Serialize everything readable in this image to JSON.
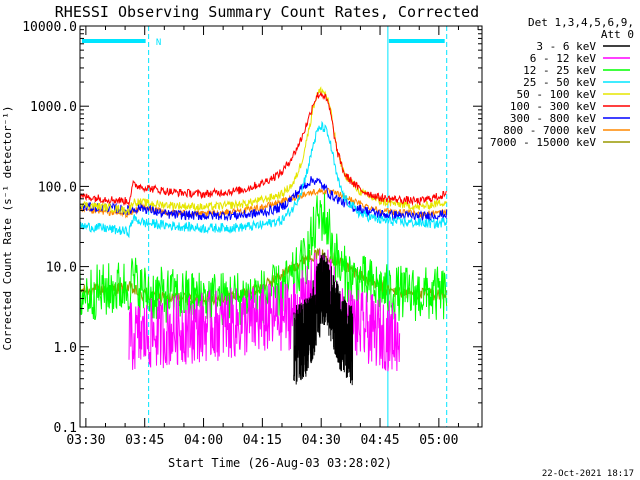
{
  "chart_data": {
    "type": "line",
    "title": "RHESSI Observing Summary Count Rates, Corrected",
    "xlabel": "Start Time (26-Aug-03 03:28:02)",
    "ylabel": "Corrected Count Rate (s⁻¹ detector⁻¹)",
    "yscale": "log",
    "ylim": [
      0.1,
      10000
    ],
    "xlim": [
      0,
      100
    ],
    "x_tick_labels": [
      "03:30",
      "03:45",
      "04:00",
      "04:15",
      "04:30",
      "04:45",
      "05:00"
    ],
    "x_tick_positions": [
      0,
      15,
      30,
      45,
      60,
      75,
      90
    ],
    "y_tick_labels": [
      "0.1",
      "1.0",
      "10.0",
      "100.0",
      "1000.0",
      "10000.0"
    ],
    "y_tick_values": [
      0.1,
      1,
      10,
      100,
      1000,
      10000
    ],
    "legend_header": [
      "Det 1,3,4,5,6,9,",
      "Att 0"
    ],
    "footer_date": "22-Oct-2021 18:17",
    "night_markers": [
      {
        "start": -1.5,
        "end": 16,
        "label": "N"
      },
      {
        "start": 77,
        "end": 92,
        "label": ""
      }
    ],
    "vertical_markers": [
      -1.5,
      16,
      77,
      92
    ],
    "series": [
      {
        "name": "3 - 6 keV",
        "color": "#000000",
        "points": [
          [
            53,
            1.0
          ],
          [
            56,
            1.3
          ],
          [
            58,
            2.2
          ],
          [
            59,
            3.5
          ],
          [
            60,
            4.5
          ],
          [
            61,
            5.0
          ],
          [
            62,
            4.2
          ],
          [
            63,
            3.0
          ],
          [
            65,
            1.5
          ],
          [
            68,
            1.0
          ]
        ]
      },
      {
        "name": "6 - 12 keV",
        "color": "#ff00ff",
        "points": [
          [
            11,
            1.3
          ],
          [
            16,
            1.4
          ],
          [
            22,
            1.6
          ],
          [
            30,
            1.8
          ],
          [
            40,
            2.0
          ],
          [
            48,
            2.3
          ],
          [
            53,
            2.6
          ],
          [
            56,
            3.5
          ],
          [
            58,
            5
          ],
          [
            59,
            6.5
          ],
          [
            60,
            7.5
          ],
          [
            61,
            7.0
          ],
          [
            62,
            5.5
          ],
          [
            63,
            4.0
          ],
          [
            64,
            3.0
          ],
          [
            66,
            2.2
          ],
          [
            70,
            1.8
          ],
          [
            77,
            1.4
          ],
          [
            80,
            1.3
          ]
        ]
      },
      {
        "name": "12 - 25 keV",
        "color": "#00ff00",
        "points": [
          [
            -1.5,
            4.5
          ],
          [
            5,
            5.0
          ],
          [
            11,
            5.8
          ],
          [
            12,
            7
          ],
          [
            14,
            5
          ],
          [
            18,
            4.5
          ],
          [
            25,
            4.2
          ],
          [
            35,
            4.0
          ],
          [
            45,
            4.3
          ],
          [
            50,
            5
          ],
          [
            53,
            7
          ],
          [
            56,
            12
          ],
          [
            58,
            25
          ],
          [
            59,
            38
          ],
          [
            60,
            45
          ],
          [
            61,
            40
          ],
          [
            62,
            28
          ],
          [
            63,
            17
          ],
          [
            65,
            9
          ],
          [
            68,
            7
          ],
          [
            72,
            6
          ],
          [
            77,
            4.8
          ],
          [
            85,
            4.5
          ],
          [
            92,
            4.5
          ]
        ]
      },
      {
        "name": "25 - 50 keV",
        "color": "#00e5ff",
        "points": [
          [
            -1.5,
            32
          ],
          [
            5,
            30
          ],
          [
            11,
            27
          ],
          [
            12,
            40
          ],
          [
            15,
            35
          ],
          [
            20,
            33
          ],
          [
            30,
            30
          ],
          [
            40,
            31
          ],
          [
            45,
            33
          ],
          [
            50,
            38
          ],
          [
            53,
            55
          ],
          [
            55,
            90
          ],
          [
            57,
            200
          ],
          [
            58,
            340
          ],
          [
            59,
            480
          ],
          [
            60,
            560
          ],
          [
            61,
            520
          ],
          [
            62,
            400
          ],
          [
            63,
            240
          ],
          [
            64,
            130
          ],
          [
            66,
            70
          ],
          [
            70,
            45
          ],
          [
            75,
            38
          ],
          [
            80,
            36
          ],
          [
            90,
            34
          ],
          [
            92,
            38
          ]
        ]
      },
      {
        "name": "50 - 100 keV",
        "color": "#e6e600",
        "points": [
          [
            -1.5,
            60
          ],
          [
            5,
            55
          ],
          [
            11,
            50
          ],
          [
            12,
            65
          ],
          [
            18,
            60
          ],
          [
            30,
            55
          ],
          [
            40,
            60
          ],
          [
            45,
            68
          ],
          [
            50,
            80
          ],
          [
            53,
            110
          ],
          [
            55,
            200
          ],
          [
            57,
            550
          ],
          [
            58,
            1000
          ],
          [
            59,
            1400
          ],
          [
            60,
            1600
          ],
          [
            61,
            1450
          ],
          [
            62,
            1100
          ],
          [
            63,
            600
          ],
          [
            64,
            280
          ],
          [
            66,
            140
          ],
          [
            70,
            85
          ],
          [
            75,
            65
          ],
          [
            85,
            55
          ],
          [
            92,
            65
          ]
        ]
      },
      {
        "name": "100 - 300 keV",
        "color": "#ff0000",
        "points": [
          [
            -1.5,
            75
          ],
          [
            5,
            70
          ],
          [
            11,
            65
          ],
          [
            12,
            105
          ],
          [
            16,
            95
          ],
          [
            22,
            85
          ],
          [
            30,
            80
          ],
          [
            40,
            90
          ],
          [
            45,
            110
          ],
          [
            50,
            150
          ],
          [
            53,
            250
          ],
          [
            55,
            400
          ],
          [
            57,
            750
          ],
          [
            58,
            1100
          ],
          [
            59,
            1350
          ],
          [
            60,
            1450
          ],
          [
            61,
            1300
          ],
          [
            62,
            1000
          ],
          [
            63,
            550
          ],
          [
            64,
            280
          ],
          [
            66,
            140
          ],
          [
            70,
            90
          ],
          [
            75,
            72
          ],
          [
            85,
            65
          ],
          [
            92,
            80
          ]
        ]
      },
      {
        "name": "300 - 800 keV",
        "color": "#0000ff",
        "points": [
          [
            -1.5,
            55
          ],
          [
            5,
            55
          ],
          [
            11,
            50
          ],
          [
            14,
            55
          ],
          [
            20,
            45
          ],
          [
            30,
            43
          ],
          [
            40,
            44
          ],
          [
            45,
            47
          ],
          [
            50,
            55
          ],
          [
            53,
            75
          ],
          [
            55,
            95
          ],
          [
            57,
            115
          ],
          [
            58,
            120
          ],
          [
            59,
            118
          ],
          [
            60,
            105
          ],
          [
            61,
            95
          ],
          [
            62,
            82
          ],
          [
            64,
            70
          ],
          [
            68,
            55
          ],
          [
            75,
            45
          ],
          [
            85,
            42
          ],
          [
            92,
            45
          ]
        ]
      },
      {
        "name": "800 - 7000 keV",
        "color": "#ff8800",
        "points": [
          [
            -1.5,
            50
          ],
          [
            5,
            48
          ],
          [
            11,
            45
          ],
          [
            14,
            55
          ],
          [
            20,
            48
          ],
          [
            30,
            45
          ],
          [
            40,
            50
          ],
          [
            45,
            55
          ],
          [
            50,
            65
          ],
          [
            55,
            78
          ],
          [
            58,
            85
          ],
          [
            60,
            88
          ],
          [
            62,
            86
          ],
          [
            65,
            78
          ],
          [
            70,
            60
          ],
          [
            75,
            50
          ],
          [
            85,
            45
          ],
          [
            92,
            48
          ]
        ]
      },
      {
        "name": "7000 - 15000 keV",
        "color": "#999900",
        "points": [
          [
            -1.5,
            5.0
          ],
          [
            5,
            5.2
          ],
          [
            11,
            5.5
          ],
          [
            14,
            4.5
          ],
          [
            20,
            4.0
          ],
          [
            30,
            4.0
          ],
          [
            40,
            4.4
          ],
          [
            45,
            5.5
          ],
          [
            50,
            8
          ],
          [
            53,
            10
          ],
          [
            56,
            13
          ],
          [
            58,
            14
          ],
          [
            60,
            14
          ],
          [
            62,
            13.5
          ],
          [
            65,
            11
          ],
          [
            68,
            9
          ],
          [
            72,
            7
          ],
          [
            77,
            5
          ],
          [
            85,
            4.5
          ],
          [
            92,
            4.5
          ]
        ]
      }
    ]
  }
}
